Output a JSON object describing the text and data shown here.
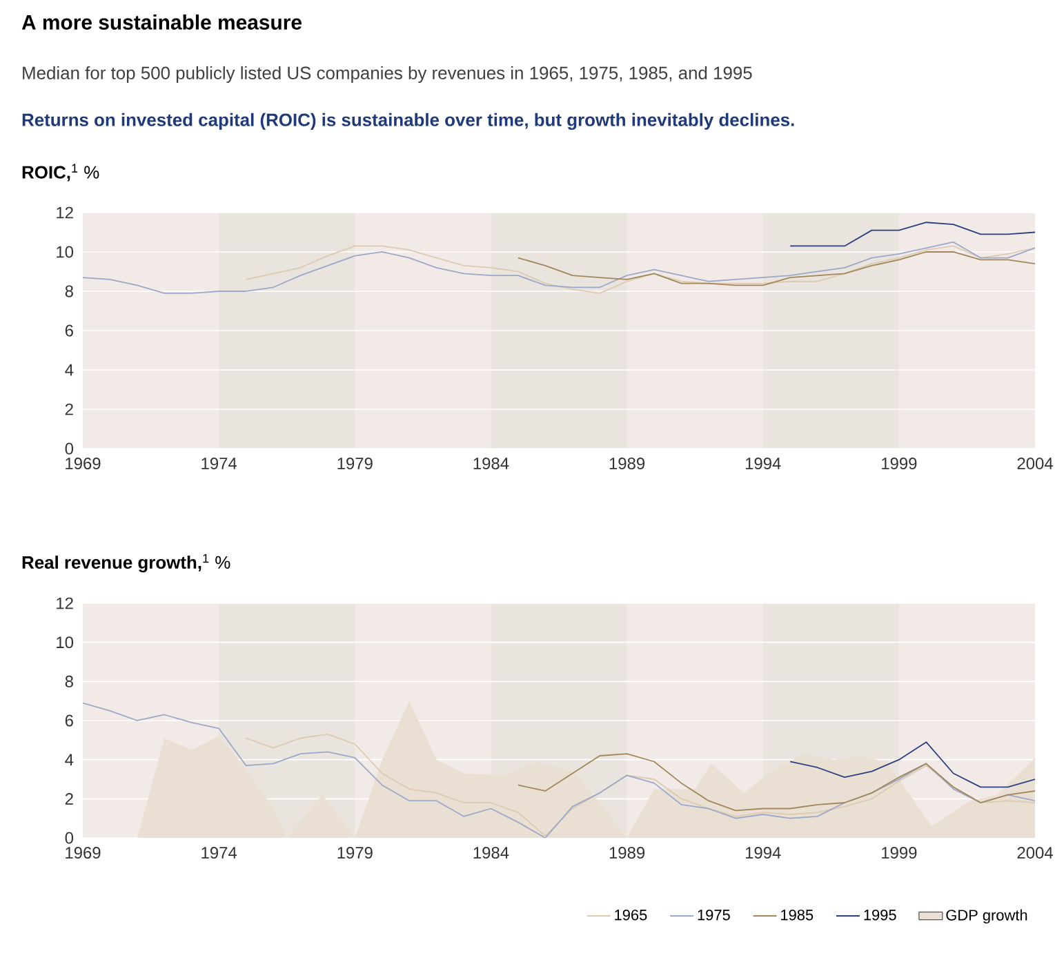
{
  "chart_data": [
    {
      "type": "line",
      "title": "A more sustainable measure",
      "subtitle": "Median for top 500 publicly listed US companies by revenues in 1965, 1975, 1985, and 1995",
      "annotations": [
        "Returns on invested capital (ROIC) is sustainable over time, but growth inevitably declines."
      ],
      "ylabel": "**ROIC,**$^{1}$ %",
      "x": [
        1969,
        1970,
        1971,
        1972,
        1973,
        1974,
        1975,
        1976,
        1977,
        1978,
        1979,
        1980,
        1981,
        1982,
        1983,
        1984,
        1985,
        1986,
        1987,
        1988,
        1989,
        1990,
        1991,
        1992,
        1993,
        1994,
        1995,
        1996,
        1997,
        1998,
        1999,
        2000,
        2001,
        2002,
        2003,
        2004
      ],
      "xlim": [
        1969,
        2004
      ],
      "xticks": [
        1969,
        1974,
        1979,
        1984,
        1989,
        1994,
        1999,
        2004
      ],
      "ylim": [
        0,
        12
      ],
      "yticks": [
        0,
        2,
        4,
        6,
        8,
        10,
        12
      ],
      "grid": "y",
      "legend": false,
      "bands": [
        {
          "axis": "x",
          "from": 1974,
          "to": 1979,
          "color": "#e9e4dd"
        },
        {
          "axis": "x",
          "from": 1984,
          "to": 1989,
          "color": "#e9e4dd"
        },
        {
          "axis": "x",
          "from": 1994,
          "to": 1999,
          "color": "#e9e4dd"
        }
      ],
      "series": [
        {
          "color": "#dccab2",
          "values": [
            null,
            null,
            null,
            null,
            null,
            null,
            8.6,
            8.9,
            9.2,
            9.8,
            10.3,
            10.3,
            10.1,
            9.7,
            9.3,
            9.2,
            9.0,
            8.4,
            8.1,
            7.9,
            8.5,
            8.9,
            8.5,
            8.4,
            8.4,
            8.4,
            8.5,
            8.5,
            8.9,
            9.4,
            9.7,
            10.1,
            10.3,
            9.7,
            9.9,
            10.2
          ]
        },
        {
          "color": "#9ca8ca",
          "values": [
            8.7,
            8.6,
            8.3,
            7.9,
            7.9,
            8.0,
            8.0,
            8.2,
            8.8,
            9.3,
            9.8,
            10.0,
            9.7,
            9.2,
            8.9,
            8.8,
            8.8,
            8.3,
            8.2,
            8.2,
            8.8,
            9.1,
            8.8,
            8.5,
            8.6,
            8.7,
            8.8,
            9.0,
            9.2,
            9.7,
            9.9,
            10.2,
            10.5,
            9.7,
            9.7,
            10.2
          ]
        },
        {
          "color": "#a3865a",
          "values": [
            null,
            null,
            null,
            null,
            null,
            null,
            null,
            null,
            null,
            null,
            null,
            null,
            null,
            null,
            null,
            null,
            9.7,
            9.3,
            8.8,
            8.7,
            8.6,
            8.9,
            8.4,
            8.4,
            8.3,
            8.3,
            8.7,
            8.8,
            8.9,
            9.3,
            9.6,
            10.0,
            10.0,
            9.6,
            9.6,
            9.4
          ]
        },
        {
          "color": "#2b3f7f",
          "values": [
            null,
            null,
            null,
            null,
            null,
            null,
            null,
            null,
            null,
            null,
            null,
            null,
            null,
            null,
            null,
            null,
            null,
            null,
            null,
            null,
            null,
            null,
            null,
            null,
            null,
            null,
            10.3,
            10.3,
            10.3,
            11.1,
            11.1,
            11.5,
            11.4,
            10.9,
            10.9,
            11.0
          ]
        }
      ]
    },
    {
      "type": "line",
      "ylabel": "**Real revenue growth,**$^{1}$ %",
      "x": [
        1969,
        1970,
        1971,
        1972,
        1973,
        1974,
        1975,
        1976,
        1977,
        1978,
        1979,
        1980,
        1981,
        1982,
        1983,
        1984,
        1985,
        1986,
        1987,
        1988,
        1989,
        1990,
        1991,
        1992,
        1993,
        1994,
        1995,
        1996,
        1997,
        1998,
        1999,
        2000,
        2001,
        2002,
        2003,
        2004
      ],
      "xlim": [
        1969,
        2004
      ],
      "xticks": [
        1969,
        1974,
        1979,
        1984,
        1989,
        1994,
        1999,
        2004
      ],
      "ylim": [
        0,
        12
      ],
      "yticks": [
        0,
        2,
        4,
        6,
        8,
        10,
        12
      ],
      "grid": "y",
      "legend": "bottom right",
      "bands": [
        {
          "axis": "x",
          "from": 1974,
          "to": 1979,
          "color": "#e9e4dd"
        },
        {
          "axis": "x",
          "from": 1984,
          "to": 1989,
          "color": "#e9e4dd"
        },
        {
          "axis": "x",
          "from": 1994,
          "to": 1999,
          "color": "#e9e4dd"
        }
      ],
      "series": [
        {
          "name": "1965",
          "color": "#dccab2",
          "values": [
            null,
            null,
            null,
            null,
            null,
            null,
            5.1,
            4.6,
            5.1,
            5.3,
            4.8,
            3.3,
            2.5,
            2.3,
            1.8,
            1.8,
            1.3,
            0.1,
            1.5,
            2.3,
            3.2,
            3.0,
            2.0,
            1.5,
            1.1,
            1.3,
            1.2,
            1.3,
            1.6,
            2.0,
            2.9,
            3.7,
            2.6,
            1.8,
            1.9,
            1.8
          ]
        },
        {
          "name": "1975",
          "color": "#9ca8ca",
          "values": [
            6.9,
            6.5,
            6.0,
            6.3,
            5.9,
            5.6,
            3.7,
            3.8,
            4.3,
            4.4,
            4.1,
            2.7,
            1.9,
            1.9,
            1.1,
            1.5,
            0.8,
            0.0,
            1.6,
            2.3,
            3.2,
            2.8,
            1.7,
            1.5,
            1.0,
            1.2,
            1.0,
            1.1,
            1.8,
            2.3,
            3.0,
            3.8,
            2.5,
            1.8,
            2.2,
            1.9
          ]
        },
        {
          "name": "1985",
          "color": "#a3865a",
          "values": [
            null,
            null,
            null,
            null,
            null,
            null,
            null,
            null,
            null,
            null,
            null,
            null,
            null,
            null,
            null,
            null,
            2.7,
            2.4,
            3.3,
            4.2,
            4.3,
            3.9,
            2.8,
            1.9,
            1.4,
            1.5,
            1.5,
            1.7,
            1.8,
            2.3,
            3.1,
            3.8,
            2.6,
            1.8,
            2.2,
            2.4
          ]
        },
        {
          "name": "1995",
          "color": "#2b3f7f",
          "values": [
            null,
            null,
            null,
            null,
            null,
            null,
            null,
            null,
            null,
            null,
            null,
            null,
            null,
            null,
            null,
            null,
            null,
            null,
            null,
            null,
            null,
            null,
            null,
            null,
            null,
            null,
            3.9,
            3.6,
            3.1,
            3.4,
            4.0,
            4.9,
            3.3,
            2.6,
            2.6,
            3.0
          ]
        },
        {
          "name": "GDP growth",
          "type": "area",
          "color": "#e9e0d3",
          "x": [
            1971,
            1972,
            1973,
            1974,
            1975,
            1976,
            1976.5,
            1977.8,
            1979,
            1980,
            1981,
            1982,
            1983,
            1984.5,
            1985.7,
            1987,
            1988,
            1989,
            1990,
            1991.5,
            1992.1,
            1993.3,
            1994.3,
            1995.5,
            1996.6,
            1997.7,
            1998.6,
            2000.2,
            2001.6,
            2002.6,
            2004
          ],
          "values": [
            0,
            5.1,
            4.5,
            5.2,
            3.5,
            1.5,
            0,
            2.2,
            0,
            4.0,
            7.0,
            4.0,
            3.3,
            3.2,
            3.9,
            3.4,
            1.8,
            0,
            2.5,
            2.5,
            3.8,
            2.3,
            3.4,
            4.3,
            4.0,
            4.2,
            3.8,
            0.6,
            1.9,
            2.2,
            4.1
          ]
        }
      ]
    }
  ]
}
